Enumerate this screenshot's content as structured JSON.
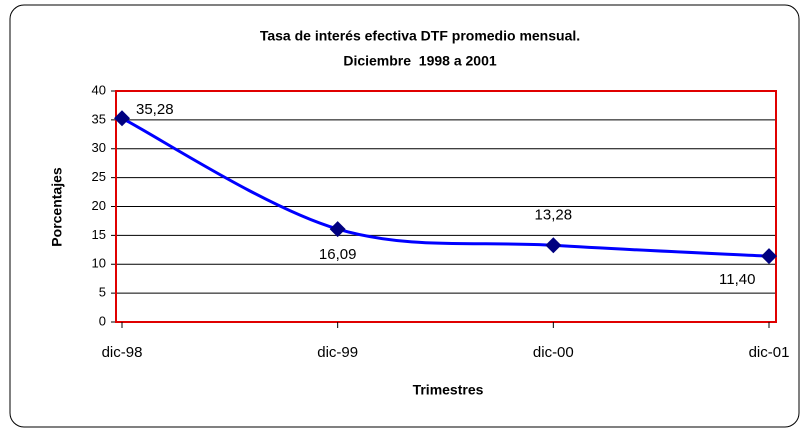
{
  "chart_data": {
    "type": "line",
    "title": "Tasa de interés efectiva DTF promedio mensual.",
    "subtitle": "Diciembre  1998 a 2001",
    "x_label": "Trimestres",
    "y_label": "Porcentajes",
    "categories": [
      "dic-98",
      "dic-99",
      "dic-00",
      "dic-01"
    ],
    "series": [
      {
        "name": "DTF",
        "color": "#0000ff",
        "marker_color": "#000080",
        "values": [
          35.28,
          16.09,
          13.28,
          11.4
        ],
        "value_labels": [
          "35,28",
          "16,09",
          "13,28",
          "11,40"
        ]
      }
    ],
    "ylim": [
      0,
      40
    ],
    "yticks": [
      0,
      5,
      10,
      15,
      20,
      25,
      30,
      35,
      40
    ],
    "grid": true,
    "smooth": true
  }
}
